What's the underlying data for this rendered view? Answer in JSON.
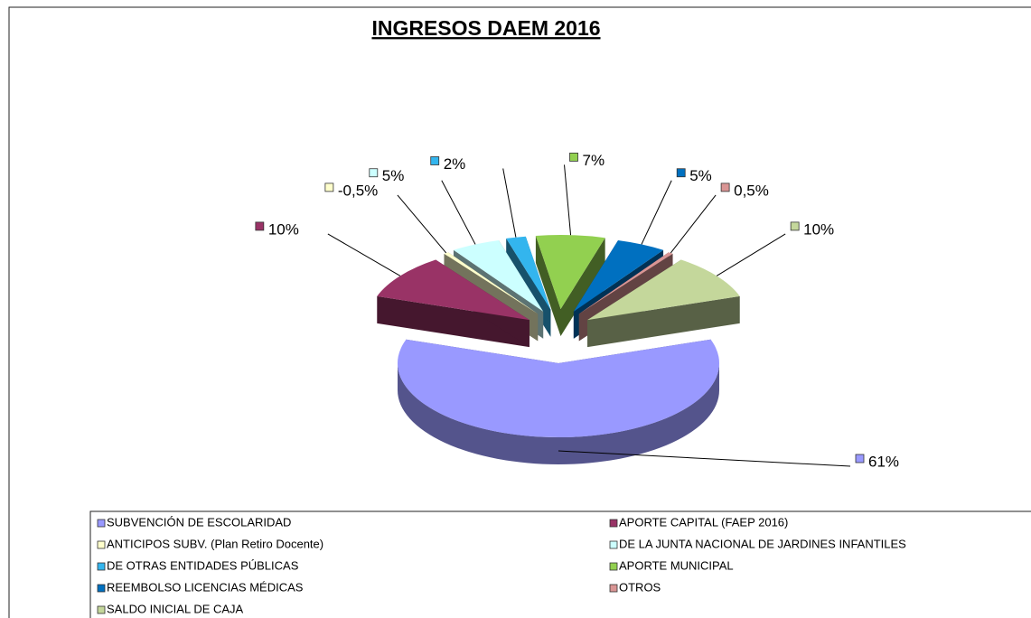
{
  "chart_data": {
    "type": "pie",
    "title": "INGRESOS DAEM 2016",
    "categories": [
      "SUBVENCIÓN DE ESCOLARIDAD",
      "APORTE CAPITAL (FAEP 2016)",
      "ANTICIPOS SUBV. (Plan Retiro Docente)",
      "DE LA JUNTA NACIONAL DE JARDINES INFANTILES",
      "DE OTRAS ENTIDADES PÚBLICAS",
      "APORTE MUNICIPAL",
      "REEMBOLSO LICENCIAS MÉDICAS",
      "OTROS",
      "SALDO INICIAL DE CAJA"
    ],
    "values": [
      61,
      10,
      -0.5,
      5,
      2,
      7,
      5,
      0.5,
      10
    ],
    "value_labels": [
      "61%",
      "10%",
      "-0,5%",
      "5%",
      "2%",
      "7%",
      "5%",
      "0,5%",
      "10%"
    ],
    "colors": [
      "#9999ff",
      "#993366",
      "#ffffcc",
      "#ccffff",
      "#33b5ee",
      "#92d050",
      "#0070c0",
      "#d99594",
      "#c4d79b"
    ],
    "legend": "bottom"
  }
}
